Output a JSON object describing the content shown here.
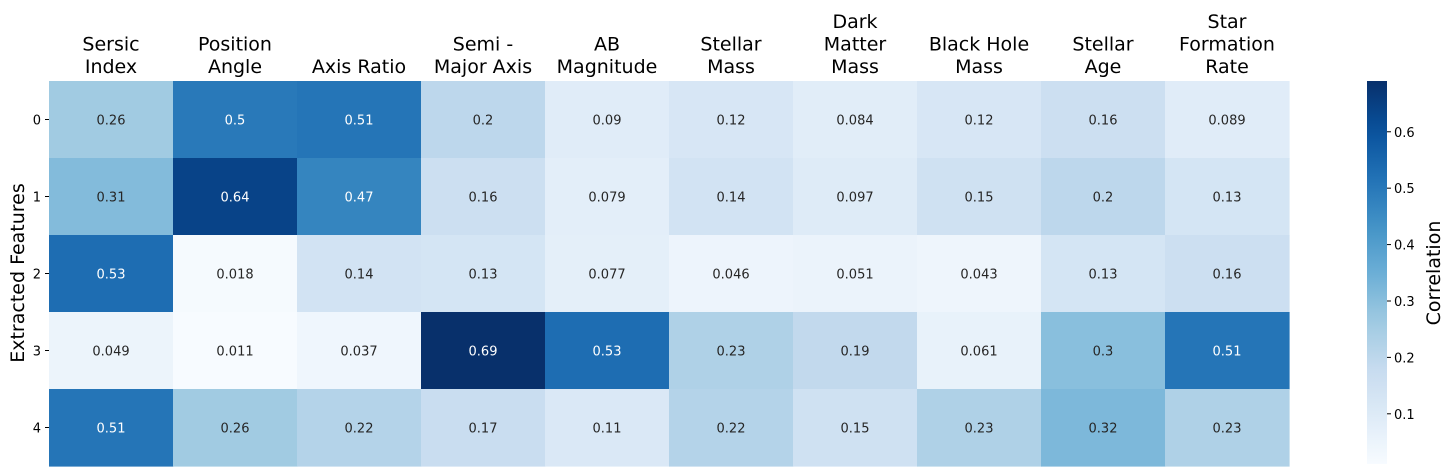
{
  "chart_data": {
    "type": "heatmap",
    "columns": [
      [
        "Sersic",
        "Index"
      ],
      [
        "Position",
        "Angle"
      ],
      [
        "Axis Ratio"
      ],
      [
        "Semi -",
        "Major Axis"
      ],
      [
        "AB",
        "Magnitude"
      ],
      [
        "Stellar",
        "Mass"
      ],
      [
        "Dark",
        "Matter",
        "Mass"
      ],
      [
        "Black Hole",
        "Mass"
      ],
      [
        "Stellar",
        "Age"
      ],
      [
        "Star",
        "Formation",
        "Rate"
      ]
    ],
    "rows": [
      "0",
      "1",
      "2",
      "3",
      "4"
    ],
    "ylabel": "Extracted Features",
    "values": [
      [
        0.26,
        0.5,
        0.51,
        0.2,
        0.09,
        0.12,
        0.084,
        0.12,
        0.16,
        0.089
      ],
      [
        0.31,
        0.64,
        0.47,
        0.16,
        0.079,
        0.14,
        0.097,
        0.15,
        0.2,
        0.13
      ],
      [
        0.53,
        0.018,
        0.14,
        0.13,
        0.077,
        0.046,
        0.051,
        0.043,
        0.13,
        0.16
      ],
      [
        0.049,
        0.011,
        0.037,
        0.69,
        0.53,
        0.23,
        0.19,
        0.061,
        0.3,
        0.51
      ],
      [
        0.51,
        0.26,
        0.22,
        0.17,
        0.11,
        0.22,
        0.15,
        0.23,
        0.32,
        0.23
      ]
    ],
    "colorbar": {
      "label": "Correlation",
      "colormap": "Blues",
      "vmin": 0.011,
      "vmax": 0.69,
      "ticks": [
        "0.1",
        "0.2",
        "0.3",
        "0.4",
        "0.5",
        "0.6"
      ]
    }
  }
}
